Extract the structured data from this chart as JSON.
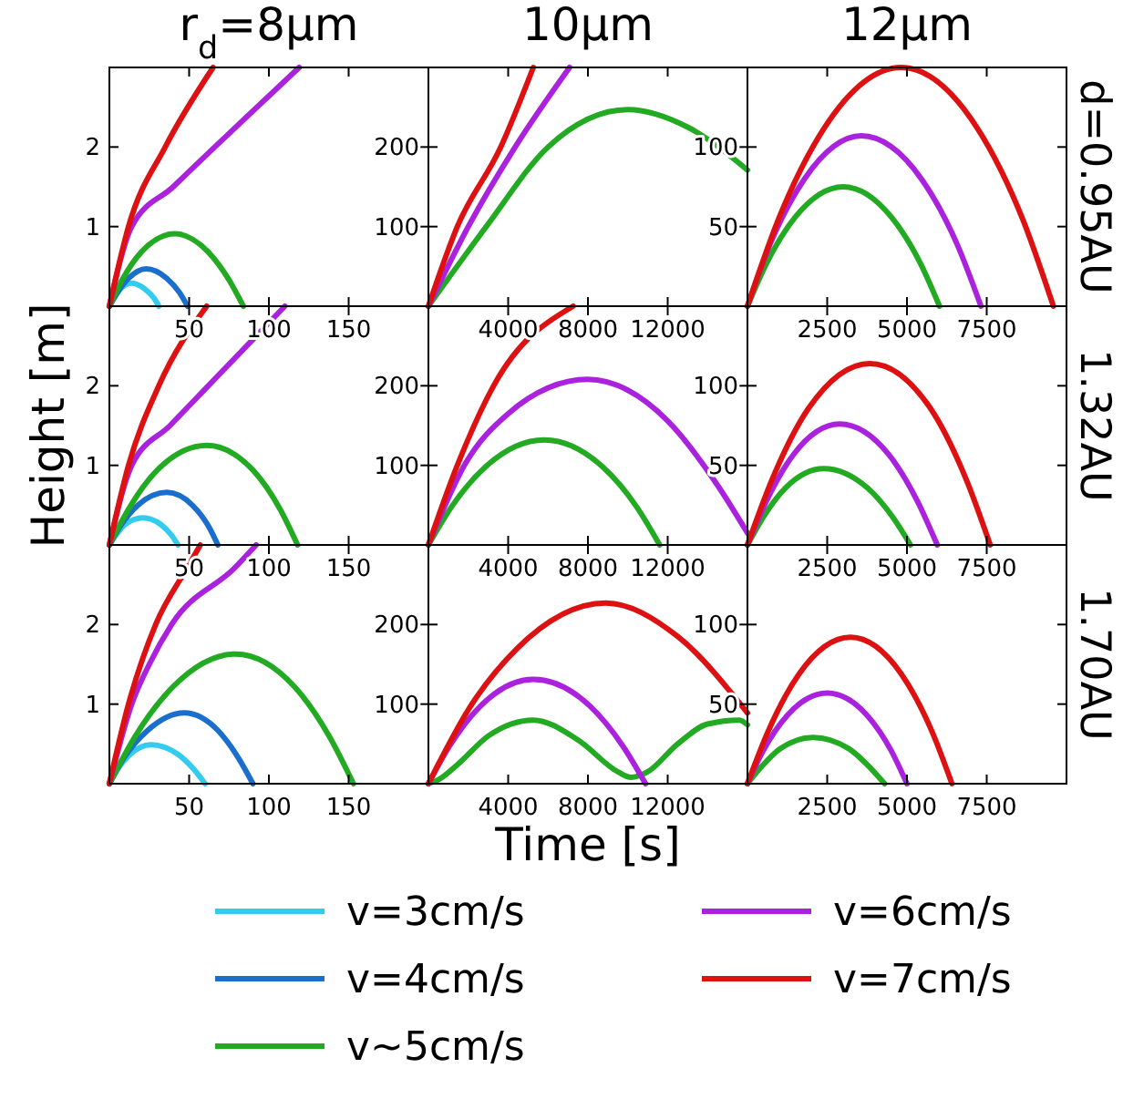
{
  "chart_data": [
    {
      "type": "line",
      "title": "r$_{d}$=8μm",
      "legend": "bottom",
      "xlim": [
        0,
        200
      ],
      "xticks": [
        50,
        100,
        150
      ],
      "ylim": [
        0,
        3
      ],
      "yticks": [
        1,
        2
      ],
      "series": [
        {
          "name": "v=3cm/s",
          "color": "#33ccee",
          "x": [
            0,
            3,
            7,
            14,
            22,
            28,
            31
          ],
          "values": [
            0,
            0.1,
            0.22,
            0.29,
            0.22,
            0.1,
            0
          ]
        },
        {
          "name": "v=4cm/s",
          "color": "#1a6fcc",
          "x": [
            0,
            5,
            12,
            23,
            36,
            44,
            49
          ],
          "values": [
            0,
            0.17,
            0.35,
            0.47,
            0.35,
            0.17,
            0
          ]
        },
        {
          "name": "v~5cm/s",
          "color": "#22aa22",
          "x": [
            0,
            8,
            20,
            41,
            62,
            75,
            84
          ],
          "values": [
            0,
            0.33,
            0.68,
            0.91,
            0.68,
            0.33,
            0
          ]
        },
        {
          "name": "v=6cm/s",
          "color": "#aa22dd",
          "x": [
            0,
            14,
            40,
            66,
            119
          ],
          "values": [
            0,
            1,
            1.5,
            2,
            3
          ]
        },
        {
          "name": "v=7cm/s",
          "color": "#dd1111",
          "x": [
            0,
            12,
            35,
            65
          ],
          "values": [
            0,
            1,
            2,
            3
          ]
        }
      ]
    },
    {
      "type": "line",
      "title": "10μm",
      "xlim": [
        0,
        16000
      ],
      "xticks": [
        4000,
        8000,
        12000
      ],
      "ylim": [
        0,
        300
      ],
      "yticks": [
        100,
        200
      ],
      "series": [
        {
          "color": "#22aa22",
          "x": [
            0,
            2900,
            6000,
            10000,
            13000,
            16000
          ],
          "values": [
            0,
            100,
            200,
            247,
            225,
            171
          ]
        },
        {
          "color": "#aa22dd",
          "x": [
            0,
            2000,
            4350,
            7080
          ],
          "values": [
            0,
            100,
            200,
            300
          ]
        },
        {
          "color": "#dd1111",
          "x": [
            0,
            1450,
            3630,
            5260
          ],
          "values": [
            0,
            100,
            200,
            300
          ]
        }
      ]
    },
    {
      "type": "line",
      "title": "12μm",
      "y2label": "d=0.95AU",
      "xlim": [
        0,
        10000
      ],
      "xticks": [
        2500,
        5000,
        7500
      ],
      "ylim": [
        0,
        150
      ],
      "yticks": [
        50,
        100
      ],
      "series": [
        {
          "color": "#22aa22",
          "x": [
            0,
            600,
            1500,
            3000,
            4510,
            5420,
            6020
          ],
          "values": [
            0,
            27,
            56,
            75,
            56,
            27,
            0
          ]
        },
        {
          "color": "#aa22dd",
          "x": [
            0,
            710,
            1790,
            3570,
            5450,
            6570,
            7320
          ],
          "values": [
            0,
            39,
            80,
            107,
            80,
            39,
            0
          ]
        },
        {
          "color": "#dd1111",
          "x": [
            0,
            960,
            2410,
            4820,
            7200,
            8640,
            9590
          ],
          "values": [
            0,
            54,
            112,
            150,
            112,
            54,
            0
          ]
        }
      ]
    },
    {
      "type": "line",
      "ylabel": "Height [m]",
      "xlim": [
        0,
        200
      ],
      "xticks": [
        50,
        100,
        150
      ],
      "ylim": [
        0,
        3
      ],
      "yticks": [
        1,
        2
      ],
      "series": [
        {
          "color": "#33ccee",
          "x": [
            0,
            4,
            10,
            21,
            32,
            39,
            43
          ],
          "values": [
            0,
            0.12,
            0.26,
            0.34,
            0.26,
            0.12,
            0
          ]
        },
        {
          "color": "#1a6fcc",
          "x": [
            0,
            7,
            18,
            36,
            52,
            62,
            68
          ],
          "values": [
            0,
            0.24,
            0.5,
            0.66,
            0.5,
            0.24,
            0
          ]
        },
        {
          "color": "#22aa22",
          "x": [
            0,
            12,
            30,
            61,
            90,
            107,
            118
          ],
          "values": [
            0,
            0.45,
            0.94,
            1.25,
            0.94,
            0.45,
            0
          ]
        },
        {
          "color": "#aa22dd",
          "x": [
            0,
            14,
            38,
            62,
            110
          ],
          "values": [
            0,
            1,
            1.5,
            2,
            3
          ]
        },
        {
          "color": "#dd1111",
          "x": [
            0,
            12,
            31,
            61
          ],
          "values": [
            0,
            1,
            2,
            3
          ]
        }
      ]
    },
    {
      "type": "line",
      "xlim": [
        0,
        16000
      ],
      "xticks": [
        4000,
        8000,
        12000
      ],
      "ylim": [
        0,
        300
      ],
      "yticks": [
        100,
        200
      ],
      "series": [
        {
          "color": "#22aa22",
          "x": [
            0,
            1160,
            2900,
            5810,
            8700,
            10440,
            11600
          ],
          "values": [
            0,
            48,
            99,
            132,
            99,
            48,
            0
          ]
        },
        {
          "color": "#aa22dd",
          "x": [
            0,
            1800,
            4000,
            7990,
            12000,
            14500,
            16000
          ],
          "values": [
            0,
            100,
            165,
            208,
            156,
            75,
            15
          ]
        },
        {
          "color": "#dd1111",
          "x": [
            0,
            1450,
            3270,
            7260
          ],
          "values": [
            0,
            100,
            200,
            300
          ]
        }
      ]
    },
    {
      "type": "line",
      "y2label": "1.32AU",
      "xlim": [
        0,
        10000
      ],
      "xticks": [
        2500,
        5000,
        7500
      ],
      "ylim": [
        0,
        150
      ],
      "yticks": [
        50,
        100
      ],
      "series": [
        {
          "color": "#22aa22",
          "x": [
            0,
            480,
            1200,
            2390,
            3750,
            4570,
            5110
          ],
          "values": [
            0,
            17,
            36,
            48,
            36,
            17,
            0
          ]
        },
        {
          "color": "#aa22dd",
          "x": [
            0,
            580,
            1450,
            2890,
            4420,
            5340,
            5950
          ],
          "values": [
            0,
            27,
            57,
            76,
            57,
            27,
            0
          ]
        },
        {
          "color": "#dd1111",
          "x": [
            0,
            770,
            1920,
            3840,
            5730,
            6860,
            7610
          ],
          "values": [
            0,
            41,
            86,
            114,
            86,
            41,
            0
          ]
        }
      ]
    },
    {
      "type": "line",
      "xlim": [
        0,
        200
      ],
      "xticks": [
        50,
        100,
        150
      ],
      "ylim": [
        0,
        3
      ],
      "yticks": [
        1,
        2
      ],
      "series": [
        {
          "color": "#33ccee",
          "x": [
            0,
            5,
            13,
            26,
            43,
            53,
            60
          ],
          "values": [
            0,
            0.18,
            0.37,
            0.49,
            0.37,
            0.18,
            0
          ]
        },
        {
          "color": "#1a6fcc",
          "x": [
            0,
            9,
            24,
            47,
            68,
            81,
            90
          ],
          "values": [
            0,
            0.32,
            0.67,
            0.89,
            0.67,
            0.32,
            0
          ]
        },
        {
          "color": "#22aa22",
          "x": [
            0,
            16,
            40,
            79,
            116,
            138,
            153
          ],
          "values": [
            0,
            0.59,
            1.22,
            1.63,
            1.22,
            0.59,
            0
          ]
        },
        {
          "color": "#aa22dd",
          "x": [
            0,
            14,
            25,
            39,
            79,
            92
          ],
          "values": [
            0,
            1,
            1.5,
            2,
            2.72,
            3
          ]
        },
        {
          "color": "#dd1111",
          "x": [
            0,
            12,
            29,
            49,
            57
          ],
          "values": [
            0,
            1,
            2,
            2.72,
            3
          ]
        }
      ]
    },
    {
      "type": "line",
      "xlabel": "Time [s]",
      "xlim": [
        0,
        16000
      ],
      "xticks": [
        4000,
        8000,
        12000
      ],
      "ylim": [
        0,
        300
      ],
      "yticks": [
        100,
        200
      ],
      "series": [
        {
          "color": "#22aa22",
          "x": [
            0,
            500,
            1500,
            3000,
            5260,
            7500,
            9500,
            10160,
            11000,
            12500,
            14000,
            15600,
            16000
          ],
          "values": [
            0,
            5,
            25,
            60,
            80,
            55,
            15,
            8,
            15,
            50,
            75,
            80,
            74
          ]
        },
        {
          "color": "#aa22dd",
          "x": [
            0,
            1050,
            2630,
            5260,
            8080,
            9760,
            10890
          ],
          "values": [
            0,
            47,
            98,
            131,
            98,
            47,
            0
          ]
        },
        {
          "color": "#dd1111",
          "x": [
            0,
            2180,
            4450,
            8890,
            12500,
            16000
          ],
          "values": [
            0,
            100,
            170,
            227,
            185,
            89
          ]
        }
      ]
    },
    {
      "type": "line",
      "y2label": "1.70AU",
      "xlim": [
        0,
        10000
      ],
      "xticks": [
        2500,
        5000,
        7500
      ],
      "ylim": [
        0,
        150
      ],
      "yticks": [
        50,
        100
      ],
      "series": [
        {
          "color": "#22aa22",
          "x": [
            0,
            410,
            1030,
            2050,
            3180,
            3850,
            4300
          ],
          "values": [
            0,
            10,
            22,
            29,
            22,
            10,
            0
          ]
        },
        {
          "color": "#aa22dd",
          "x": [
            0,
            500,
            1250,
            2500,
            3750,
            4500,
            5000
          ],
          "values": [
            0,
            21,
            43,
            57,
            43,
            21,
            0
          ]
        },
        {
          "color": "#dd1111",
          "x": [
            0,
            650,
            1620,
            3230,
            4820,
            5780,
            6410
          ],
          "values": [
            0,
            33,
            69,
            92,
            69,
            33,
            0
          ]
        }
      ]
    }
  ]
}
